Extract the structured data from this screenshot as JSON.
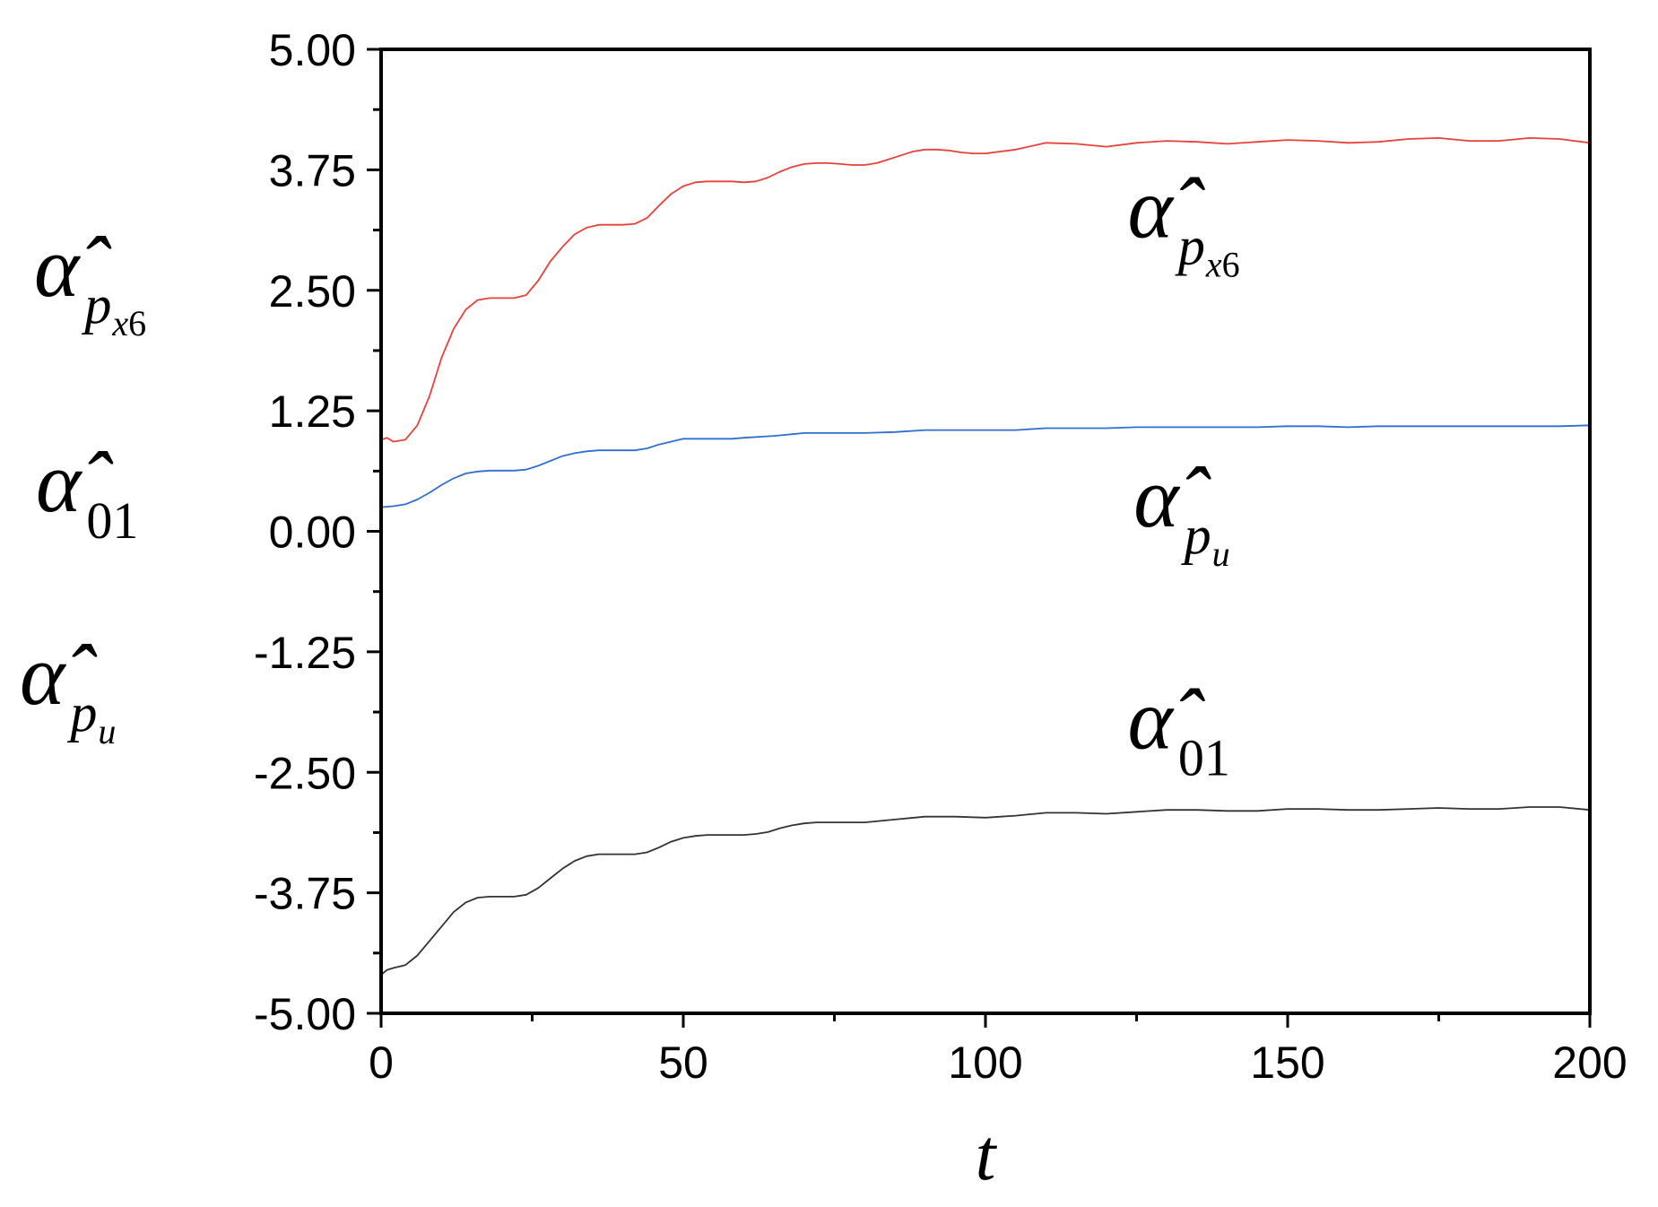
{
  "chart_data": {
    "type": "line",
    "xlabel": "t",
    "xlim": [
      0,
      200
    ],
    "ylim": [
      -5,
      5
    ],
    "x_ticks": [
      "0",
      "50",
      "100",
      "150",
      "200"
    ],
    "y_ticks": [
      "5.00",
      "3.75",
      "2.50",
      "1.25",
      "0.00",
      "-1.25",
      "-2.50",
      "-3.75",
      "-5.00"
    ],
    "ylabel_entries": [
      {
        "base": "α̂",
        "sub": "p",
        "subsub": "x6"
      },
      {
        "base": "α̂",
        "sub": "01"
      },
      {
        "base": "α̂",
        "sub": "p",
        "subsub": "u"
      }
    ],
    "grid": false,
    "series": [
      {
        "color": "#e8413a",
        "x": [
          0,
          1,
          2,
          4,
          6,
          8,
          10,
          12,
          14,
          16,
          18,
          20,
          22,
          24,
          26,
          28,
          30,
          32,
          34,
          36,
          38,
          40,
          42,
          44,
          46,
          48,
          50,
          52,
          54,
          56,
          58,
          60,
          62,
          64,
          66,
          68,
          70,
          72,
          74,
          76,
          78,
          80,
          82,
          84,
          86,
          88,
          90,
          92,
          94,
          96,
          98,
          100,
          105,
          110,
          115,
          120,
          125,
          130,
          135,
          140,
          145,
          150,
          155,
          160,
          165,
          170,
          175,
          180,
          185,
          190,
          195,
          200
        ],
        "values": [
          0.95,
          0.97,
          0.93,
          0.95,
          1.1,
          1.4,
          1.8,
          2.1,
          2.3,
          2.4,
          2.42,
          2.42,
          2.42,
          2.45,
          2.6,
          2.8,
          2.95,
          3.08,
          3.15,
          3.18,
          3.18,
          3.18,
          3.19,
          3.25,
          3.38,
          3.5,
          3.58,
          3.62,
          3.63,
          3.63,
          3.63,
          3.62,
          3.63,
          3.67,
          3.73,
          3.78,
          3.81,
          3.82,
          3.82,
          3.81,
          3.8,
          3.8,
          3.82,
          3.86,
          3.9,
          3.94,
          3.96,
          3.96,
          3.95,
          3.93,
          3.92,
          3.92,
          3.96,
          4.03,
          4.02,
          3.99,
          4.03,
          4.05,
          4.04,
          4.02,
          4.04,
          4.06,
          4.05,
          4.03,
          4.04,
          4.07,
          4.08,
          4.05,
          4.05,
          4.08,
          4.07,
          4.03
        ]
      },
      {
        "color": "#2f6fd0",
        "x": [
          0,
          2,
          4,
          6,
          8,
          10,
          12,
          14,
          16,
          18,
          20,
          22,
          24,
          26,
          28,
          30,
          32,
          34,
          36,
          38,
          40,
          42,
          44,
          46,
          48,
          50,
          52,
          54,
          56,
          58,
          60,
          65,
          70,
          75,
          80,
          85,
          90,
          95,
          100,
          105,
          110,
          115,
          120,
          125,
          130,
          135,
          140,
          145,
          150,
          155,
          160,
          165,
          170,
          175,
          180,
          185,
          190,
          195,
          200
        ],
        "values": [
          0.25,
          0.26,
          0.28,
          0.33,
          0.4,
          0.48,
          0.55,
          0.6,
          0.62,
          0.63,
          0.63,
          0.63,
          0.64,
          0.68,
          0.73,
          0.78,
          0.81,
          0.83,
          0.84,
          0.84,
          0.84,
          0.84,
          0.86,
          0.9,
          0.93,
          0.96,
          0.96,
          0.96,
          0.96,
          0.96,
          0.97,
          0.99,
          1.02,
          1.02,
          1.02,
          1.03,
          1.05,
          1.05,
          1.05,
          1.05,
          1.07,
          1.07,
          1.07,
          1.08,
          1.08,
          1.08,
          1.08,
          1.08,
          1.09,
          1.09,
          1.08,
          1.09,
          1.09,
          1.09,
          1.09,
          1.09,
          1.09,
          1.09,
          1.1
        ]
      },
      {
        "color": "#333333",
        "x": [
          0,
          1,
          2,
          4,
          6,
          8,
          10,
          12,
          14,
          16,
          18,
          20,
          22,
          24,
          26,
          28,
          30,
          32,
          34,
          36,
          38,
          40,
          42,
          44,
          46,
          48,
          50,
          52,
          54,
          56,
          58,
          60,
          62,
          64,
          66,
          68,
          70,
          72,
          74,
          76,
          78,
          80,
          85,
          90,
          95,
          100,
          105,
          110,
          115,
          120,
          125,
          130,
          135,
          140,
          145,
          150,
          155,
          160,
          165,
          170,
          175,
          180,
          185,
          190,
          195,
          200
        ],
        "values": [
          -4.6,
          -4.55,
          -4.53,
          -4.5,
          -4.4,
          -4.25,
          -4.1,
          -3.95,
          -3.85,
          -3.8,
          -3.79,
          -3.79,
          -3.79,
          -3.77,
          -3.7,
          -3.6,
          -3.5,
          -3.42,
          -3.37,
          -3.35,
          -3.35,
          -3.35,
          -3.35,
          -3.33,
          -3.28,
          -3.22,
          -3.18,
          -3.16,
          -3.15,
          -3.15,
          -3.15,
          -3.15,
          -3.14,
          -3.12,
          -3.08,
          -3.05,
          -3.03,
          -3.02,
          -3.02,
          -3.02,
          -3.02,
          -3.02,
          -2.99,
          -2.96,
          -2.96,
          -2.97,
          -2.95,
          -2.92,
          -2.92,
          -2.93,
          -2.91,
          -2.89,
          -2.89,
          -2.9,
          -2.9,
          -2.88,
          -2.88,
          -2.89,
          -2.89,
          -2.88,
          -2.87,
          -2.88,
          -2.88,
          -2.86,
          -2.86,
          -2.89
        ]
      }
    ],
    "annotations": [
      {
        "base": "α̂",
        "sub": "p",
        "subsub": "x6",
        "x": 125,
        "y": 3.05
      },
      {
        "base": "α̂",
        "sub": "p",
        "subsub": "u",
        "x": 126,
        "y": 0.05
      },
      {
        "base": "α̂",
        "sub": "01",
        "x": 125,
        "y": -2.25
      }
    ]
  }
}
